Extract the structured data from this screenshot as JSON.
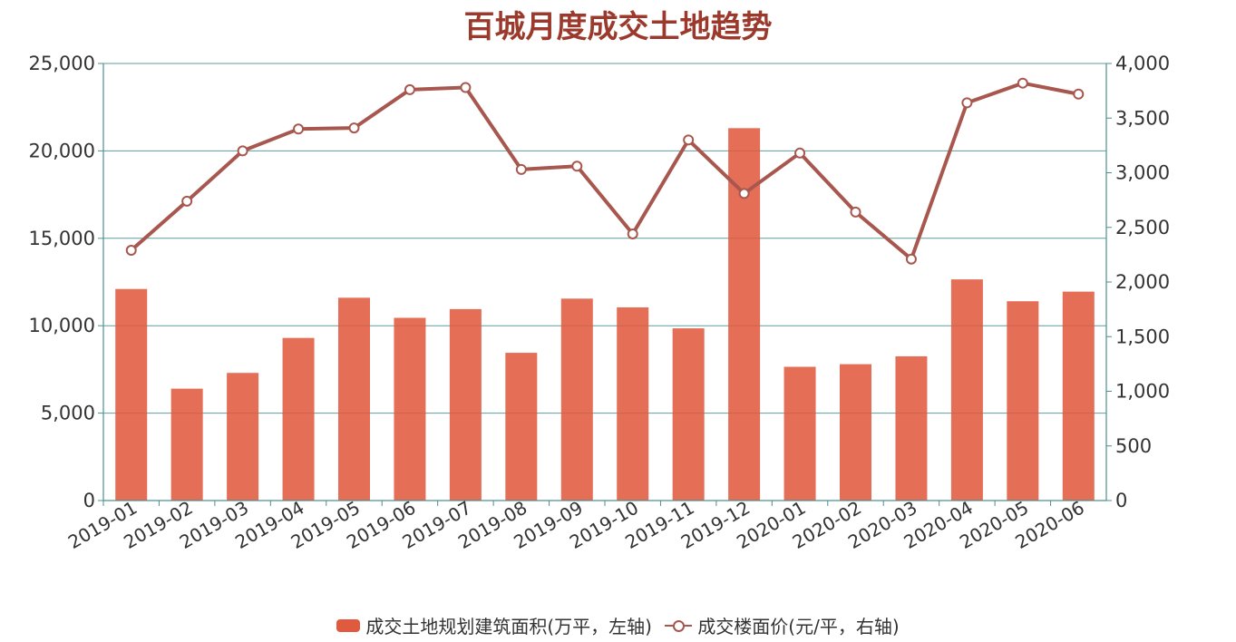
{
  "chart_data": {
    "type": "bar",
    "title": "百城月度成交土地趋势",
    "categories": [
      "2019-01",
      "2019-02",
      "2019-03",
      "2019-04",
      "2019-05",
      "2019-06",
      "2019-07",
      "2019-08",
      "2019-09",
      "2019-10",
      "2019-11",
      "2019-12",
      "2020-01",
      "2020-02",
      "2020-03",
      "2020-04",
      "2020-05",
      "2020-06"
    ],
    "series": [
      {
        "name": "成交土地规划建筑面积(万平，左轴)",
        "type": "bar",
        "axis": "left",
        "color": "#e05a3f",
        "values": [
          12100,
          6400,
          7300,
          9300,
          11600,
          10450,
          10950,
          8450,
          11550,
          11050,
          9850,
          21300,
          7650,
          7800,
          8250,
          12650,
          11400,
          11950
        ]
      },
      {
        "name": "成交楼面价(元/平，右轴)",
        "type": "line",
        "axis": "right",
        "color": "#a8574f",
        "values": [
          2290,
          2740,
          3200,
          3400,
          3410,
          3760,
          3780,
          3030,
          3060,
          2440,
          3300,
          2810,
          3180,
          2640,
          2210,
          3640,
          3820,
          3720
        ]
      }
    ],
    "y_left": {
      "min": 0,
      "max": 25000,
      "ticks": [
        "0",
        "5,000",
        "10,000",
        "15,000",
        "20,000",
        "25,000"
      ]
    },
    "y_right": {
      "min": 0,
      "max": 4000,
      "ticks": [
        "0",
        "500",
        "1,000",
        "1,500",
        "2,000",
        "2,500",
        "3,000",
        "3,500",
        "4,000"
      ]
    },
    "grid": true,
    "legend_position": "bottom"
  }
}
